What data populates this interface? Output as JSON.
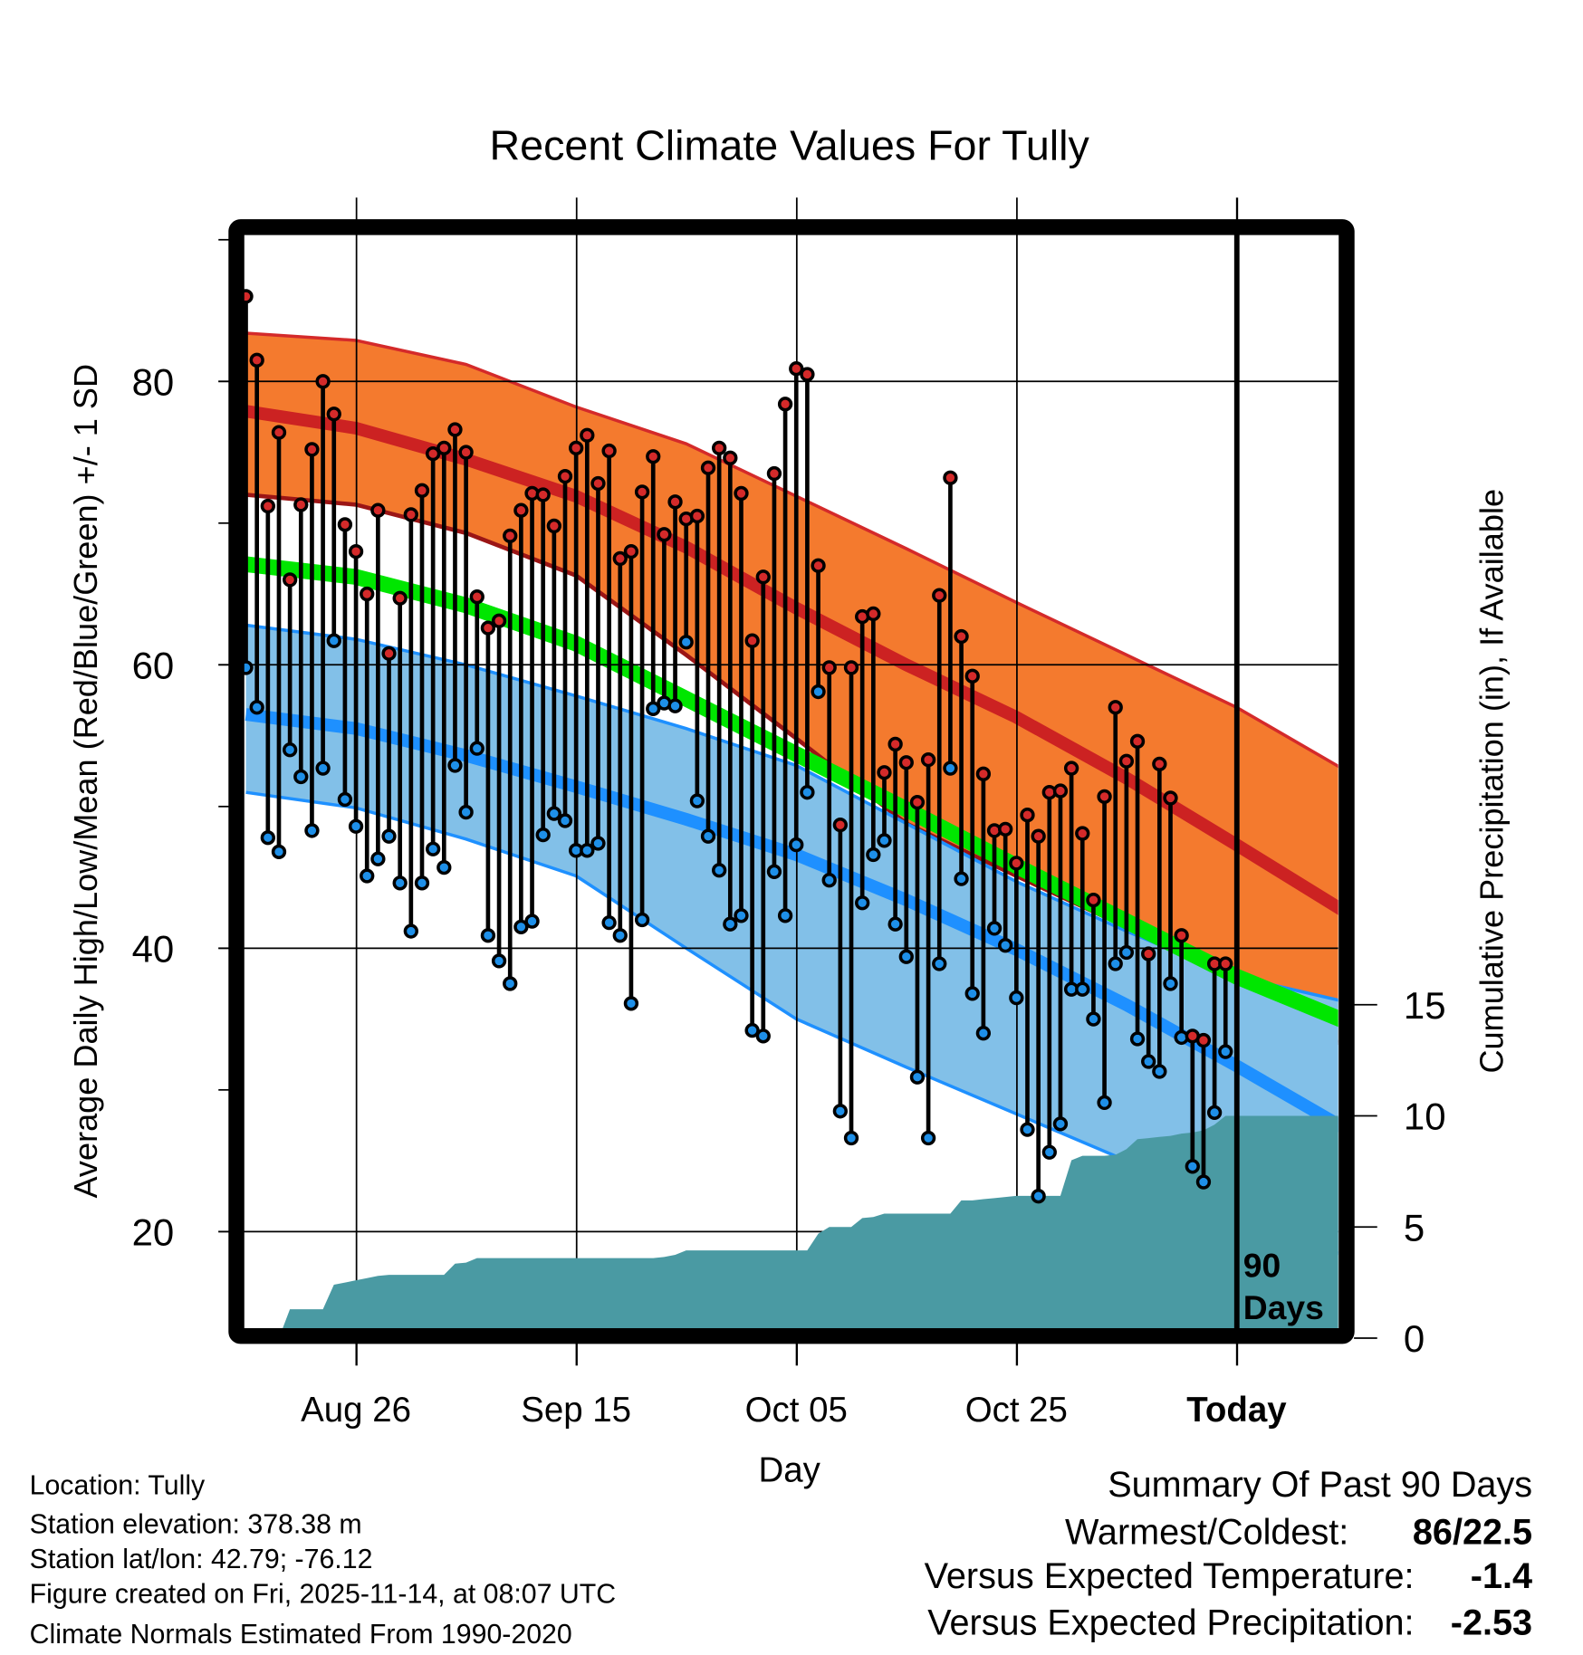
{
  "chart_data": {
    "type": "line",
    "title": "Recent Climate Values For Tully",
    "xlabel": "Day",
    "ylabel": "Average Daily High/Low/Mean (Red/Blue/Green) +/- 1 SD",
    "y2label": "Cumulative Precipitation (in), If Available",
    "ylim": [
      13,
      90.4
    ],
    "y_ticks": [
      "20",
      "40",
      "60",
      "80"
    ],
    "y2lim": [
      0,
      21.8
    ],
    "y2_ticks": [
      "0",
      "5",
      "10",
      "15"
    ],
    "x_start_date": "Aug 16",
    "x_tick_labels": [
      "Aug 26",
      "Sep 15",
      "Oct 05",
      "Oct 25",
      "Today"
    ],
    "x_tick_days": [
      10,
      30,
      50,
      70,
      90
    ],
    "today_day": 90,
    "period_label_line1": "90",
    "period_label_line2": "Days",
    "grid": true,
    "series": [
      {
        "name": "Daily High",
        "color": "#d42a2a",
        "values": [
          86,
          81.5,
          71.2,
          76.4,
          66,
          71.3,
          75.2,
          80,
          77.7,
          69.9,
          68,
          65,
          70.9,
          60.8,
          64.7,
          70.6,
          72.3,
          74.9,
          75.3,
          76.6,
          75,
          64.8,
          62.6,
          63.1,
          69.1,
          70.9,
          72.1,
          72,
          69.8,
          73.3,
          75.3,
          76.2,
          72.8,
          75.1,
          67.5,
          68,
          72.2,
          74.7,
          69.2,
          71.5,
          70.3,
          70.5,
          73.9,
          75.3,
          74.6,
          72.1,
          61.7,
          66.2,
          73.5,
          78.4,
          80.9,
          80.5,
          67,
          59.8,
          48.7,
          59.8,
          63.4,
          63.6,
          52.4,
          54.4,
          53.1,
          50.3,
          53.3,
          64.9,
          73.2,
          62,
          59.2,
          52.3,
          48.3,
          48.4,
          46,
          49.4,
          47.9,
          51,
          51.1,
          52.7,
          48.1,
          43.4,
          50.7,
          57,
          53.2,
          54.6,
          39.6,
          53,
          50.6,
          40.9,
          33.8,
          33.5,
          38.9,
          38.9
        ]
      },
      {
        "name": "Daily Low",
        "color": "#1e8fe8",
        "values": [
          59.8,
          57,
          47.8,
          46.8,
          54,
          52.1,
          48.3,
          52.7,
          61.7,
          50.5,
          48.6,
          45.1,
          46.3,
          47.9,
          44.6,
          41.2,
          44.6,
          47,
          45.7,
          52.9,
          49.6,
          54.1,
          40.9,
          39.1,
          37.5,
          41.5,
          41.9,
          48,
          49.5,
          49,
          46.9,
          46.9,
          47.4,
          41.8,
          40.9,
          36.1,
          42,
          56.9,
          57.3,
          57.1,
          61.6,
          50.4,
          47.9,
          45.5,
          41.7,
          42.3,
          34.2,
          33.8,
          45.4,
          42.3,
          47.3,
          51,
          58.1,
          44.8,
          28.5,
          26.6,
          43.2,
          46.6,
          47.6,
          41.7,
          39.4,
          30.9,
          26.6,
          38.9,
          52.7,
          44.9,
          36.8,
          34,
          41.4,
          40.2,
          36.5,
          27.2,
          22.5,
          25.6,
          27.6,
          37.1,
          37.1,
          35,
          29.1,
          38.9,
          39.7,
          33.6,
          32,
          31.3,
          37.5,
          33.7,
          24.6,
          23.5,
          28.4,
          32.7
        ]
      },
      {
        "name": "Cumulative Precipitation (in)",
        "color": "#4a9aa3",
        "values": [
          0,
          0,
          0,
          0,
          1.3,
          1.3,
          1.3,
          1.3,
          2.4,
          2.5,
          2.6,
          2.7,
          2.8,
          2.85,
          2.85,
          2.85,
          2.85,
          2.85,
          2.85,
          3.35,
          3.4,
          3.6,
          3.6,
          3.6,
          3.6,
          3.6,
          3.6,
          3.6,
          3.6,
          3.6,
          3.6,
          3.6,
          3.6,
          3.6,
          3.6,
          3.6,
          3.6,
          3.6,
          3.65,
          3.75,
          3.95,
          3.95,
          3.95,
          3.95,
          3.95,
          3.95,
          3.95,
          3.95,
          3.95,
          3.95,
          3.95,
          3.95,
          4.7,
          5.0,
          5.0,
          5.0,
          5.4,
          5.45,
          5.6,
          5.6,
          5.6,
          5.6,
          5.6,
          5.6,
          5.6,
          6.2,
          6.2,
          6.25,
          6.3,
          6.35,
          6.4,
          6.4,
          6.4,
          6.4,
          6.4,
          8.0,
          8.2,
          8.2,
          8.2,
          8.25,
          8.5,
          8.95,
          9.0,
          9.05,
          9.1,
          9.2,
          9.25,
          9.35,
          9.6,
          10.0
        ]
      }
    ],
    "normals": {
      "days": [
        0,
        10,
        20,
        30,
        40,
        50,
        60,
        70,
        80,
        90,
        100
      ],
      "high_plus_sd": [
        83.4,
        82.9,
        81.2,
        78.2,
        75.6,
        71.9,
        68.2,
        64.4,
        60.7,
        57.0,
        52.5
      ],
      "high_mean": [
        77.9,
        76.7,
        74.5,
        71.9,
        68.3,
        64.0,
        60.0,
        56.3,
        52.0,
        47.3,
        42.5
      ],
      "high_minus_sd": [
        72.0,
        71.3,
        69.3,
        66.3,
        60.7,
        54.8,
        48.8,
        45.1,
        41.5,
        37.6,
        33.0
      ],
      "mean": [
        67.1,
        66.2,
        64.2,
        61.5,
        57.6,
        53.7,
        49.8,
        45.8,
        41.9,
        38.0,
        34.8
      ],
      "low_plus_sd": [
        62.8,
        61.8,
        60.0,
        57.8,
        55.5,
        52.9,
        48.8,
        44.7,
        41.2,
        38.0,
        36.2
      ],
      "low_mean": [
        56.5,
        55.5,
        53.6,
        51.4,
        49.1,
        46.6,
        43.4,
        39.9,
        36.0,
        31.7,
        27.2
      ],
      "low_minus_sd": [
        51.0,
        49.9,
        47.7,
        45.1,
        40.0,
        35.0,
        31.6,
        28.3,
        25.0,
        21.8,
        18.2
      ]
    },
    "colors": {
      "high_band": "#f47a2e",
      "high_line": "#cc2222",
      "high_edge": "#d42a2a",
      "low_band": "#82c0e8",
      "low_line": "#1e90ff",
      "mean_line": "#00e600",
      "precip": "#4a9aa3"
    }
  },
  "footer": {
    "location": "Location: Tully",
    "elevation": "Station elevation: 378.38 m",
    "latlon": "Station lat/lon: 42.79; -76.12",
    "created": "Figure created on Fri, 2025-11-14, at 08:07 UTC",
    "normals": "Climate Normals Estimated From 1990-2020"
  },
  "summary": {
    "title": "Summary Of Past 90 Days",
    "warmest_label": "Warmest/Coldest:",
    "warmest_value": "86/22.5",
    "temp_label": "Versus Expected Temperature:",
    "temp_value": "-1.4",
    "temp_color": "#1e8fe8",
    "precip_label": "Versus Expected Precipitation:",
    "precip_value": "-2.53",
    "precip_color": "#a0522d"
  }
}
